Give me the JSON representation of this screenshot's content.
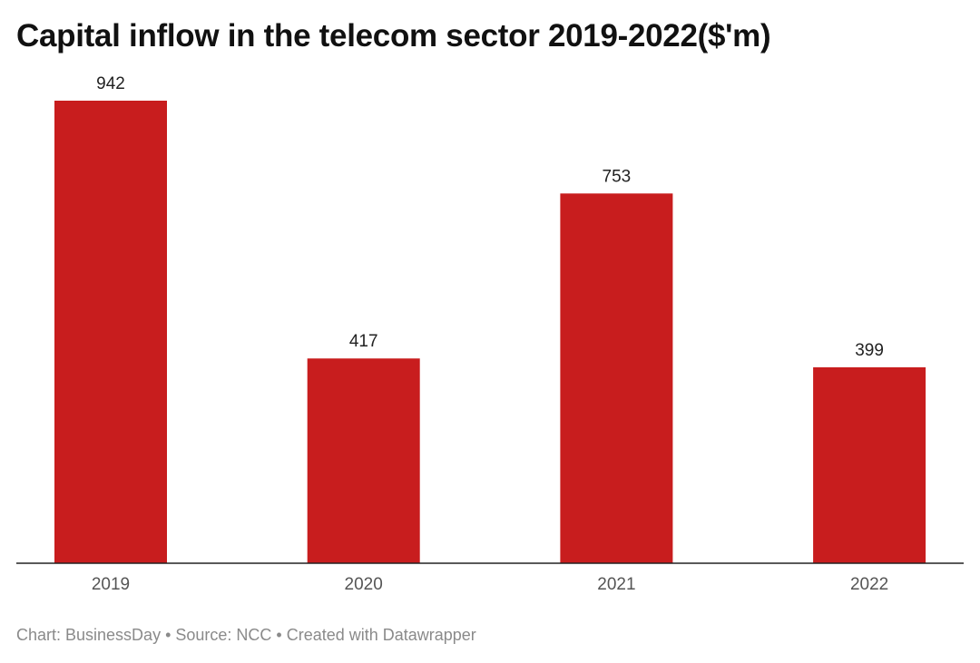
{
  "chart_data": {
    "type": "bar",
    "title": "Capital inflow in the telecom sector 2019-2022($'m)",
    "categories": [
      "2019",
      "2020",
      "2021",
      "2022"
    ],
    "values": [
      942,
      417,
      753,
      399
    ],
    "xlabel": "",
    "ylabel": "",
    "ylim": [
      0,
      942
    ],
    "grid": false,
    "bar_color": "#c81d1e",
    "data_labels": true
  },
  "footer": "Chart: BusinessDay • Source: NCC • Created with Datawrapper"
}
